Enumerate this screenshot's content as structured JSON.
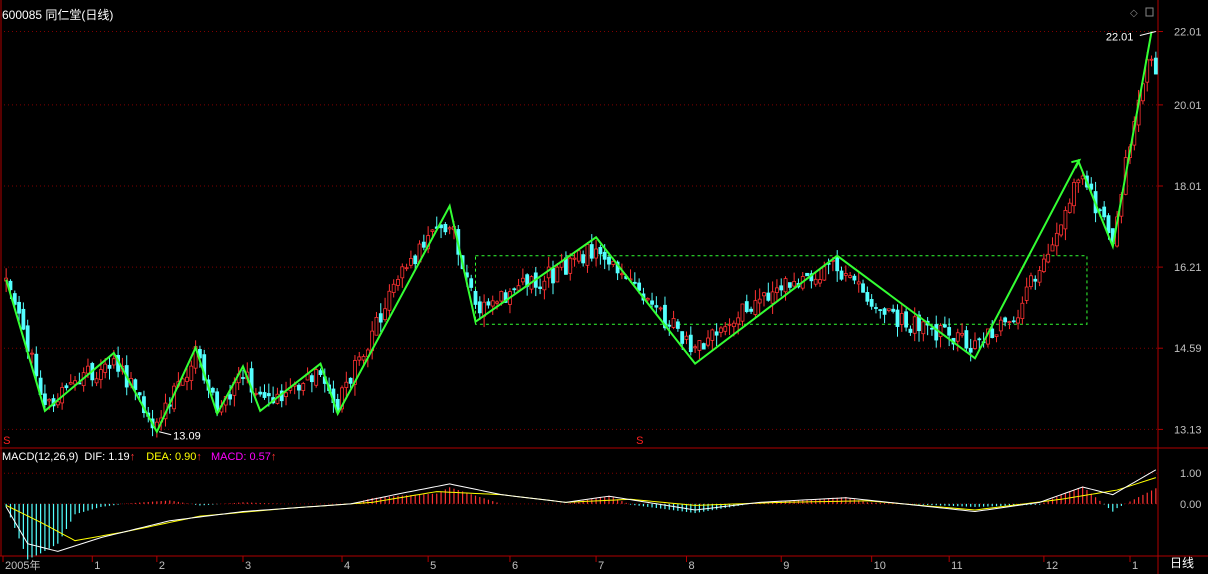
{
  "header": {
    "title": "600085 同仁堂(日线)"
  },
  "macd_header": {
    "name": "MACD(12,26,9)",
    "dif_label": "DIF:",
    "dif_value": "1.19",
    "dea_label": "DEA:",
    "dea_value": "0.90",
    "macd_label": "MACD:",
    "macd_value": "0.57",
    "up_arrow": "↑"
  },
  "period_label": "日线",
  "colors": {
    "up": "#ff3232",
    "down": "#54ffff",
    "zigzag": "#33ff33",
    "dif": "#ffffff",
    "dea": "#ffff00",
    "macd_label": "#ff00ff",
    "grid": "#800000",
    "axis": "#b00000"
  },
  "chart_data": [
    {
      "type": "candlestick",
      "title": "600085 同仁堂(日线)",
      "y_ticks": [
        "22.01",
        "20.01",
        "18.01",
        "16.21",
        "14.59",
        "13.13"
      ],
      "y_tick_values": [
        22.01,
        20.01,
        18.01,
        16.21,
        14.59,
        13.13
      ],
      "ylim": [
        12.85,
        22.4
      ],
      "scale": "log",
      "x_ticks": [
        "2005年",
        "1",
        "2",
        "3",
        "4",
        "5",
        "6",
        "7",
        "8",
        "9",
        "10",
        "11",
        "12",
        "1"
      ],
      "x_tick_positions": [
        0,
        20,
        35,
        55,
        78,
        98,
        117,
        137,
        158,
        180,
        201,
        219,
        241,
        261
      ],
      "n_bars": 268,
      "annotations": [
        {
          "label": "13.09",
          "bar": 36,
          "value": 13.09,
          "kind": "low"
        },
        {
          "label": "22.01",
          "bar": 267,
          "value": 22.01,
          "kind": "high"
        }
      ],
      "signal_markers": [
        {
          "label": "S",
          "bar": 0
        },
        {
          "label": "S",
          "bar": 147
        }
      ],
      "zigzag": [
        {
          "bar": 0,
          "value": 15.95
        },
        {
          "bar": 9,
          "value": 13.45
        },
        {
          "bar": 25,
          "value": 14.5
        },
        {
          "bar": 35,
          "value": 13.09
        },
        {
          "bar": 44,
          "value": 14.6
        },
        {
          "bar": 49,
          "value": 13.4
        },
        {
          "bar": 55,
          "value": 14.25
        },
        {
          "bar": 59,
          "value": 13.45
        },
        {
          "bar": 73,
          "value": 14.3
        },
        {
          "bar": 77,
          "value": 13.4
        },
        {
          "bar": 103,
          "value": 17.55
        },
        {
          "bar": 109,
          "value": 15.1
        },
        {
          "bar": 137,
          "value": 16.85
        },
        {
          "bar": 160,
          "value": 14.3
        },
        {
          "bar": 193,
          "value": 16.45
        },
        {
          "bar": 225,
          "value": 14.4
        },
        {
          "bar": 249,
          "value": 18.6
        },
        {
          "bar": 257,
          "value": 16.65
        },
        {
          "bar": 266,
          "value": 22.01
        }
      ],
      "consolidation_box": {
        "bar_start": 109,
        "bar_end": 251,
        "high": 16.45,
        "low": 15.05
      },
      "key_levels": [
        {
          "bar": 0,
          "value": 15.9
        },
        {
          "bar": 9,
          "value": 13.6
        },
        {
          "bar": 25,
          "value": 14.4
        },
        {
          "bar": 35,
          "value": 13.2
        },
        {
          "bar": 44,
          "value": 14.5
        },
        {
          "bar": 49,
          "value": 13.5
        },
        {
          "bar": 55,
          "value": 14.1
        },
        {
          "bar": 59,
          "value": 13.6
        },
        {
          "bar": 73,
          "value": 14.1
        },
        {
          "bar": 77,
          "value": 13.55
        },
        {
          "bar": 85,
          "value": 14.9
        },
        {
          "bar": 92,
          "value": 16.2
        },
        {
          "bar": 103,
          "value": 17.2
        },
        {
          "bar": 109,
          "value": 15.3
        },
        {
          "bar": 118,
          "value": 15.7
        },
        {
          "bar": 128,
          "value": 16.1
        },
        {
          "bar": 137,
          "value": 16.6
        },
        {
          "bar": 145,
          "value": 15.8
        },
        {
          "bar": 160,
          "value": 14.6
        },
        {
          "bar": 170,
          "value": 15.3
        },
        {
          "bar": 180,
          "value": 15.9
        },
        {
          "bar": 193,
          "value": 16.2
        },
        {
          "bar": 205,
          "value": 15.2
        },
        {
          "bar": 215,
          "value": 14.9
        },
        {
          "bar": 225,
          "value": 14.6
        },
        {
          "bar": 235,
          "value": 15.3
        },
        {
          "bar": 243,
          "value": 16.8
        },
        {
          "bar": 249,
          "value": 18.2
        },
        {
          "bar": 253,
          "value": 17.6
        },
        {
          "bar": 257,
          "value": 16.9
        },
        {
          "bar": 262,
          "value": 19.6
        },
        {
          "bar": 266,
          "value": 21.5
        },
        {
          "bar": 268,
          "value": 20.0
        }
      ]
    },
    {
      "type": "bar",
      "title": "MACD(12,26,9)",
      "y_ticks": [
        "1.00",
        "0.00"
      ],
      "y_tick_values": [
        1.0,
        0.0
      ],
      "ylim": [
        -1.7,
        1.3
      ],
      "series": [
        {
          "name": "DIF",
          "last": 1.19
        },
        {
          "name": "DEA",
          "last": 0.9
        },
        {
          "name": "MACD",
          "last": 0.57
        }
      ],
      "dif_key_levels": [
        {
          "bar": 0,
          "value": -0.1
        },
        {
          "bar": 5,
          "value": -1.3
        },
        {
          "bar": 12,
          "value": -1.55
        },
        {
          "bar": 22,
          "value": -1.1
        },
        {
          "bar": 38,
          "value": -0.55
        },
        {
          "bar": 55,
          "value": -0.25
        },
        {
          "bar": 80,
          "value": 0.0
        },
        {
          "bar": 92,
          "value": 0.35
        },
        {
          "bar": 103,
          "value": 0.65
        },
        {
          "bar": 115,
          "value": 0.3
        },
        {
          "bar": 130,
          "value": 0.05
        },
        {
          "bar": 140,
          "value": 0.25
        },
        {
          "bar": 160,
          "value": -0.2
        },
        {
          "bar": 175,
          "value": 0.05
        },
        {
          "bar": 195,
          "value": 0.2
        },
        {
          "bar": 225,
          "value": -0.25
        },
        {
          "bar": 240,
          "value": 0.05
        },
        {
          "bar": 250,
          "value": 0.55
        },
        {
          "bar": 257,
          "value": 0.3
        },
        {
          "bar": 268,
          "value": 1.19
        }
      ],
      "dea_key_levels": [
        {
          "bar": 0,
          "value": -0.05
        },
        {
          "bar": 8,
          "value": -0.6
        },
        {
          "bar": 16,
          "value": -1.2
        },
        {
          "bar": 28,
          "value": -0.9
        },
        {
          "bar": 45,
          "value": -0.4
        },
        {
          "bar": 65,
          "value": -0.15
        },
        {
          "bar": 85,
          "value": 0.05
        },
        {
          "bar": 100,
          "value": 0.4
        },
        {
          "bar": 115,
          "value": 0.3
        },
        {
          "bar": 130,
          "value": 0.05
        },
        {
          "bar": 145,
          "value": 0.15
        },
        {
          "bar": 160,
          "value": -0.05
        },
        {
          "bar": 180,
          "value": 0.05
        },
        {
          "bar": 200,
          "value": 0.1
        },
        {
          "bar": 225,
          "value": -0.2
        },
        {
          "bar": 245,
          "value": 0.15
        },
        {
          "bar": 258,
          "value": 0.45
        },
        {
          "bar": 268,
          "value": 0.9
        }
      ]
    }
  ]
}
